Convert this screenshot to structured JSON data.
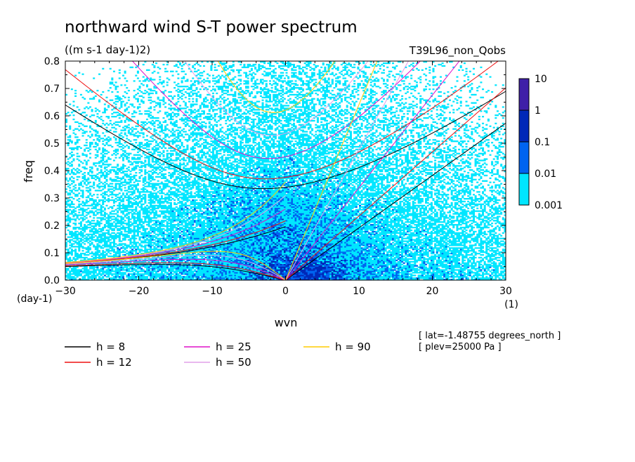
{
  "chart_data": {
    "type": "heatmap",
    "title": "northward wind S-T power spectrum",
    "units": "((m s-1 day-1)2)",
    "experiment": "T39L96_non_Qobs",
    "xlabel": "wvn",
    "ylabel": "freq",
    "x_unit_label": "(1)",
    "y_unit_label": "(day-1)",
    "xlim": [
      -30,
      30
    ],
    "ylim": [
      0,
      0.8
    ],
    "x_ticks": [
      -30,
      -20,
      -10,
      0,
      10,
      20,
      30
    ],
    "x_tick_labels": [
      "−30",
      "−20",
      "−10",
      "0",
      "10",
      "20",
      "30"
    ],
    "y_ticks": [
      0.0,
      0.1,
      0.2,
      0.3,
      0.4,
      0.5,
      0.6,
      0.7,
      0.8
    ],
    "y_tick_labels": [
      "0.0",
      "0.1",
      "0.2",
      "0.3",
      "0.4",
      "0.5",
      "0.6",
      "0.7",
      "0.8"
    ],
    "colorbar": {
      "levels": [
        "10",
        "1",
        "0.1",
        "0.01",
        "0.001"
      ],
      "colors": [
        "#3f1fa8",
        "#0028b8",
        "#0064f0",
        "#00e6ff"
      ]
    },
    "dispersion_curves": [
      {
        "h": 8,
        "label": "h =  8",
        "color": "#000000"
      },
      {
        "h": 12,
        "label": "h = 12",
        "color": "#ee1111"
      },
      {
        "h": 25,
        "label": "h = 25",
        "color": "#dd10c8"
      },
      {
        "h": 50,
        "label": "h = 50",
        "color": "#e0a0e8"
      },
      {
        "h": 90,
        "label": "h = 90",
        "color": "#ffcc00"
      }
    ],
    "info_lines": [
      "[ lat=-1.48755 degrees_north ]",
      "[ plev=25000 Pa ]"
    ]
  }
}
